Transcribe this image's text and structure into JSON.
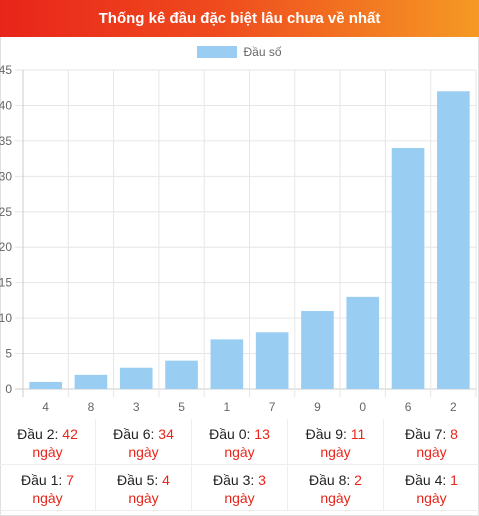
{
  "header": {
    "title": "Thống kê đầu đặc biệt lâu chưa về nhất"
  },
  "colors": {
    "bar": "#99cdf2",
    "accent_red": "#e8251a",
    "header_start": "#e8251a",
    "header_end": "#f59a24"
  },
  "chart_data": {
    "type": "bar",
    "title": "",
    "xlabel": "",
    "ylabel": "",
    "categories": [
      "4",
      "8",
      "3",
      "5",
      "1",
      "7",
      "9",
      "0",
      "6",
      "2"
    ],
    "series": [
      {
        "name": "Đầu số",
        "values": [
          1,
          2,
          3,
          4,
          7,
          8,
          11,
          13,
          34,
          42
        ]
      }
    ],
    "ylim": [
      0,
      45
    ],
    "yticks": [
      "0",
      "5",
      "10",
      "15",
      "20",
      "25",
      "30",
      "35",
      "40",
      "45"
    ],
    "grid": true,
    "legend": "top"
  },
  "stats": [
    {
      "label": "Đầu 2: ",
      "value": "42",
      "unit": "ngày"
    },
    {
      "label": "Đầu 6: ",
      "value": "34",
      "unit": "ngày"
    },
    {
      "label": "Đầu 0: ",
      "value": "13",
      "unit": "ngày"
    },
    {
      "label": "Đầu 9: ",
      "value": "11",
      "unit": "ngày"
    },
    {
      "label": "Đầu 7: ",
      "value": "8",
      "unit": "ngày"
    },
    {
      "label": "Đầu 1: ",
      "value": "7",
      "unit": "ngày"
    },
    {
      "label": "Đầu 5: ",
      "value": "4",
      "unit": "ngày"
    },
    {
      "label": "Đầu 3: ",
      "value": "3",
      "unit": "ngày"
    },
    {
      "label": "Đầu 8: ",
      "value": "2",
      "unit": "ngày"
    },
    {
      "label": "Đầu 4: ",
      "value": "1",
      "unit": "ngày"
    }
  ]
}
